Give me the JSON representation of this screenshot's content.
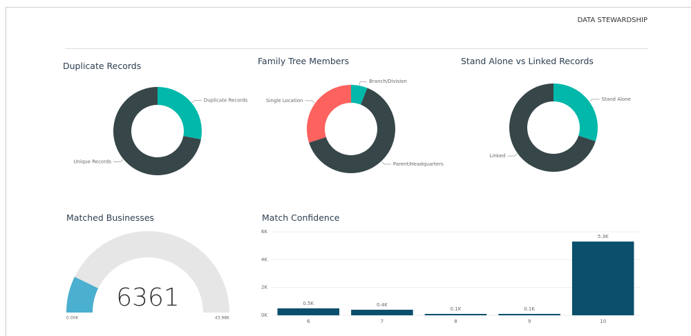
{
  "header": {
    "title": "DATA STEWARDSHIP"
  },
  "chart_data": [
    {
      "type": "donut",
      "title": "Duplicate Records",
      "categories": [
        "Duplicate Records",
        "Unique Records"
      ],
      "values": [
        28,
        72
      ],
      "colors": [
        "#01b8aa",
        "#374649"
      ]
    },
    {
      "type": "donut",
      "title": "Family Tree Members",
      "categories": [
        "Branch/Division",
        "Parent/Headquarters",
        "Single Location"
      ],
      "values": [
        6,
        64,
        30
      ],
      "colors": [
        "#01b8aa",
        "#374649",
        "#fd625e"
      ]
    },
    {
      "type": "donut",
      "title": "Stand Alone vs Linked Records",
      "categories": [
        "Stand Alone",
        "Linked"
      ],
      "values": [
        30,
        70
      ],
      "colors": [
        "#01b8aa",
        "#374649"
      ]
    },
    {
      "type": "gauge",
      "title": "Matched Businesses",
      "value": 6361,
      "ylim": [
        0,
        43980
      ],
      "yticks": [
        {
          "value": 0,
          "label": "0.00K"
        },
        {
          "value": 43980,
          "label": "43.98K"
        }
      ],
      "color": "#4bafd0",
      "track_color": "#e6e6e6"
    },
    {
      "type": "bar",
      "title": "Match Confidence",
      "categories": [
        "6",
        "7",
        "8",
        "9",
        "10"
      ],
      "values": [
        500,
        400,
        100,
        100,
        5300
      ],
      "value_labels": [
        "0.5K",
        "0.4K",
        "0.1K",
        "0.1K",
        "5.3K"
      ],
      "color": "#0b4f6c",
      "ylim": [
        0,
        6000
      ],
      "yticks": [
        {
          "value": 0,
          "label": "0K"
        },
        {
          "value": 2000,
          "label": "2K"
        },
        {
          "value": 4000,
          "label": "4K"
        },
        {
          "value": 6000,
          "label": "6K"
        }
      ],
      "grid": true
    }
  ]
}
